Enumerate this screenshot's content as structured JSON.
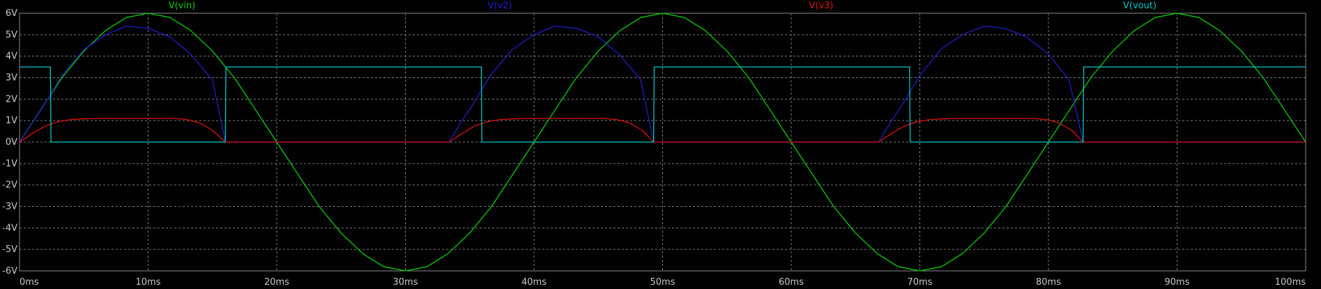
{
  "chart_data": {
    "type": "line",
    "title": "",
    "xlabel": "",
    "ylabel": "",
    "xlim": [
      0,
      100
    ],
    "ylim": [
      -6,
      6
    ],
    "grid": true,
    "legend_placement": "top",
    "x_ticks": [
      0,
      10,
      20,
      30,
      40,
      50,
      60,
      70,
      80,
      90,
      100
    ],
    "x_tick_labels": [
      "0ms",
      "10ms",
      "20ms",
      "30ms",
      "40ms",
      "50ms",
      "60ms",
      "70ms",
      "80ms",
      "90ms",
      "100ms"
    ],
    "y_ticks": [
      6,
      5,
      4,
      3,
      2,
      1,
      0,
      -1,
      -2,
      -3,
      -4,
      -5,
      -6
    ],
    "y_tick_labels": [
      "6V",
      "5V",
      "4V",
      "3V",
      "2V",
      "1V",
      "0V",
      "-1V",
      "-2V",
      "-3V",
      "-4V",
      "-5V",
      "-6V"
    ],
    "colors": {
      "background": "#000000",
      "axis": "#8c8c8c",
      "grid": "#7a7a7a",
      "tick_text": "#c8c8c8"
    },
    "series": [
      {
        "name": "V(vin)",
        "color": "#00d000",
        "x": [
          0,
          1.7,
          3.3,
          5,
          6.7,
          8.3,
          10,
          11.7,
          13.3,
          15,
          16.7,
          18.3,
          20,
          21.7,
          23.3,
          25,
          26.7,
          28.3,
          30,
          31.7,
          33.3,
          35,
          36.7,
          38.3,
          40,
          41.7,
          43.3,
          45,
          46.7,
          48.3,
          50,
          51.7,
          53.3,
          55,
          56.7,
          58.3,
          60,
          61.7,
          63.3,
          65,
          66.7,
          68.3,
          70,
          71.7,
          73.3,
          75,
          76.7,
          78.3,
          80,
          81.7,
          83.3,
          85,
          86.7,
          88.3,
          90,
          91.7,
          93.3,
          95,
          96.7,
          98.3,
          100
        ],
        "values": [
          0,
          1.55,
          3,
          4.24,
          5.2,
          5.8,
          6,
          5.8,
          5.2,
          4.24,
          3,
          1.55,
          0,
          -1.55,
          -3,
          -4.24,
          -5.2,
          -5.8,
          -6,
          -5.8,
          -5.2,
          -4.24,
          -3,
          -1.55,
          0,
          1.55,
          3,
          4.24,
          5.2,
          5.8,
          6,
          5.8,
          5.2,
          4.24,
          3,
          1.55,
          0,
          -1.55,
          -3,
          -4.24,
          -5.2,
          -5.8,
          -6,
          -5.8,
          -5.2,
          -4.24,
          -3,
          -1.55,
          0,
          1.55,
          3,
          4.24,
          5.2,
          5.8,
          6,
          5.8,
          5.2,
          4.24,
          3,
          1.55,
          0
        ]
      },
      {
        "name": "V(v2)",
        "color": "#1e1ec8",
        "x": [
          0,
          1,
          2,
          3.3,
          5,
          6.7,
          8.3,
          10,
          11.7,
          13.3,
          15,
          16,
          33.4,
          34.3,
          35.3,
          36.6,
          38.3,
          40,
          41.6,
          43.3,
          45,
          46.6,
          48.3,
          49.3,
          66.8,
          67.7,
          68.7,
          70,
          71.6,
          73.3,
          75,
          76.6,
          78.3,
          80,
          81.6,
          82.7,
          100
        ],
        "values": [
          0,
          0.9,
          1.8,
          3.1,
          4.3,
          5.0,
          5.4,
          5.3,
          4.9,
          4.1,
          2.9,
          0,
          0,
          0.9,
          1.8,
          3.1,
          4.3,
          5.0,
          5.4,
          5.3,
          4.9,
          4.1,
          2.9,
          0,
          0,
          0.9,
          1.8,
          3.1,
          4.3,
          5.0,
          5.4,
          5.3,
          4.9,
          4.1,
          2.9,
          0,
          0
        ]
      },
      {
        "name": "V(v3)",
        "color": "#e01010",
        "x": [
          0,
          1,
          2,
          3,
          4,
          5,
          6,
          12,
          13,
          14,
          15,
          16,
          33.4,
          34.4,
          35.4,
          36.4,
          37.4,
          38.4,
          39.4,
          45.4,
          46.4,
          47.4,
          48.4,
          49.3,
          66.8,
          67.8,
          68.8,
          69.8,
          70.8,
          71.8,
          72.8,
          78.8,
          79.8,
          80.8,
          81.8,
          82.7,
          100
        ],
        "values": [
          0,
          0.4,
          0.75,
          0.95,
          1.05,
          1.08,
          1.1,
          1.1,
          1.05,
          0.9,
          0.55,
          0,
          0,
          0.4,
          0.75,
          0.95,
          1.05,
          1.08,
          1.1,
          1.1,
          1.05,
          0.9,
          0.55,
          0,
          0,
          0.4,
          0.75,
          0.95,
          1.05,
          1.08,
          1.1,
          1.1,
          1.05,
          0.9,
          0.55,
          0,
          0
        ]
      },
      {
        "name": "V(vout)",
        "color": "#00c8c8",
        "x": [
          0,
          2.4,
          2.45,
          16,
          16.05,
          35.9,
          35.95,
          49.3,
          49.35,
          69.2,
          69.25,
          82.7,
          82.75,
          100
        ],
        "values": [
          3.5,
          3.5,
          0,
          0,
          3.5,
          3.5,
          0,
          0,
          3.5,
          3.5,
          0,
          0,
          3.5,
          3.5
        ]
      }
    ]
  }
}
